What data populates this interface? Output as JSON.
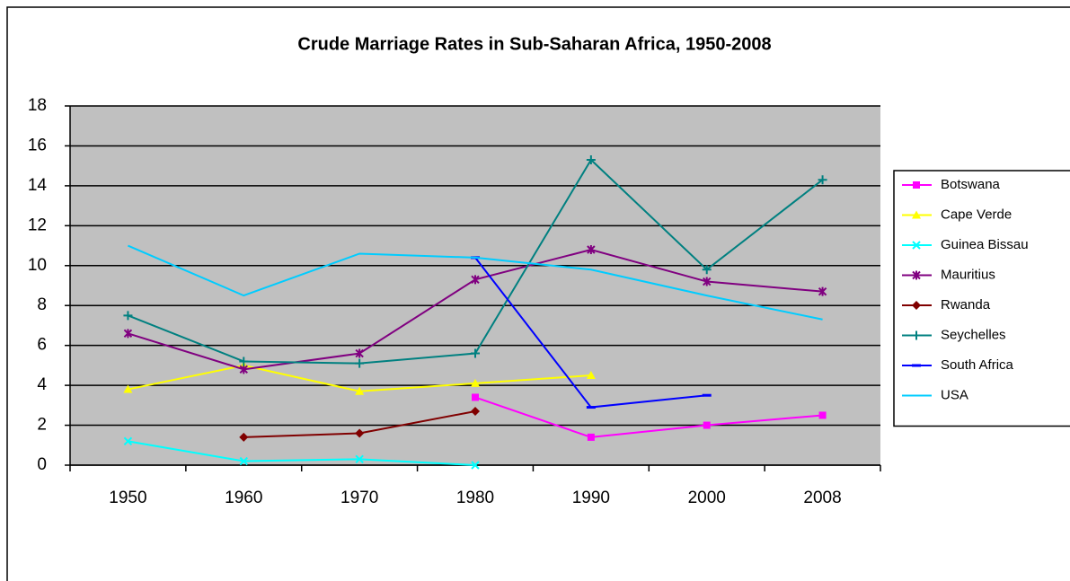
{
  "chart_data": {
    "type": "line",
    "title": "Crude Marriage Rates in Sub-Saharan Africa, 1950-2008",
    "categories": [
      "1950",
      "1960",
      "1970",
      "1980",
      "1990",
      "2000",
      "2008"
    ],
    "ylim": [
      0,
      18
    ],
    "yticks": [
      0,
      2,
      4,
      6,
      8,
      10,
      12,
      14,
      16,
      18
    ],
    "grid": true,
    "legend": "right",
    "series": [
      {
        "name": "Botswana",
        "color": "#ff00ff",
        "marker": "square",
        "values": [
          null,
          null,
          null,
          3.4,
          1.4,
          2.0,
          2.5
        ]
      },
      {
        "name": "Cape Verde",
        "color": "#ffff00",
        "marker": "triangle",
        "values": [
          3.8,
          5.0,
          3.7,
          4.1,
          4.5,
          null,
          null
        ]
      },
      {
        "name": "Guinea Bissau",
        "color": "#00ffff",
        "marker": "x",
        "values": [
          1.2,
          0.2,
          0.3,
          0.0,
          null,
          null,
          null
        ]
      },
      {
        "name": "Mauritius",
        "color": "#800080",
        "marker": "star",
        "values": [
          6.6,
          4.8,
          5.6,
          9.3,
          10.8,
          9.2,
          8.7
        ]
      },
      {
        "name": "Rwanda",
        "color": "#800000",
        "marker": "diamond",
        "values": [
          null,
          1.4,
          1.6,
          2.7,
          null,
          null,
          null
        ]
      },
      {
        "name": "Seychelles",
        "color": "#008080",
        "marker": "plus",
        "values": [
          7.5,
          5.2,
          5.1,
          5.6,
          15.3,
          9.8,
          14.3
        ]
      },
      {
        "name": "South Africa",
        "color": "#0000ff",
        "marker": "dash",
        "values": [
          null,
          null,
          null,
          10.4,
          2.9,
          3.5,
          null
        ]
      },
      {
        "name": "USA",
        "color": "#00ccff",
        "marker": "none",
        "values": [
          11.0,
          8.5,
          10.6,
          10.4,
          9.8,
          8.5,
          7.3
        ]
      }
    ]
  }
}
